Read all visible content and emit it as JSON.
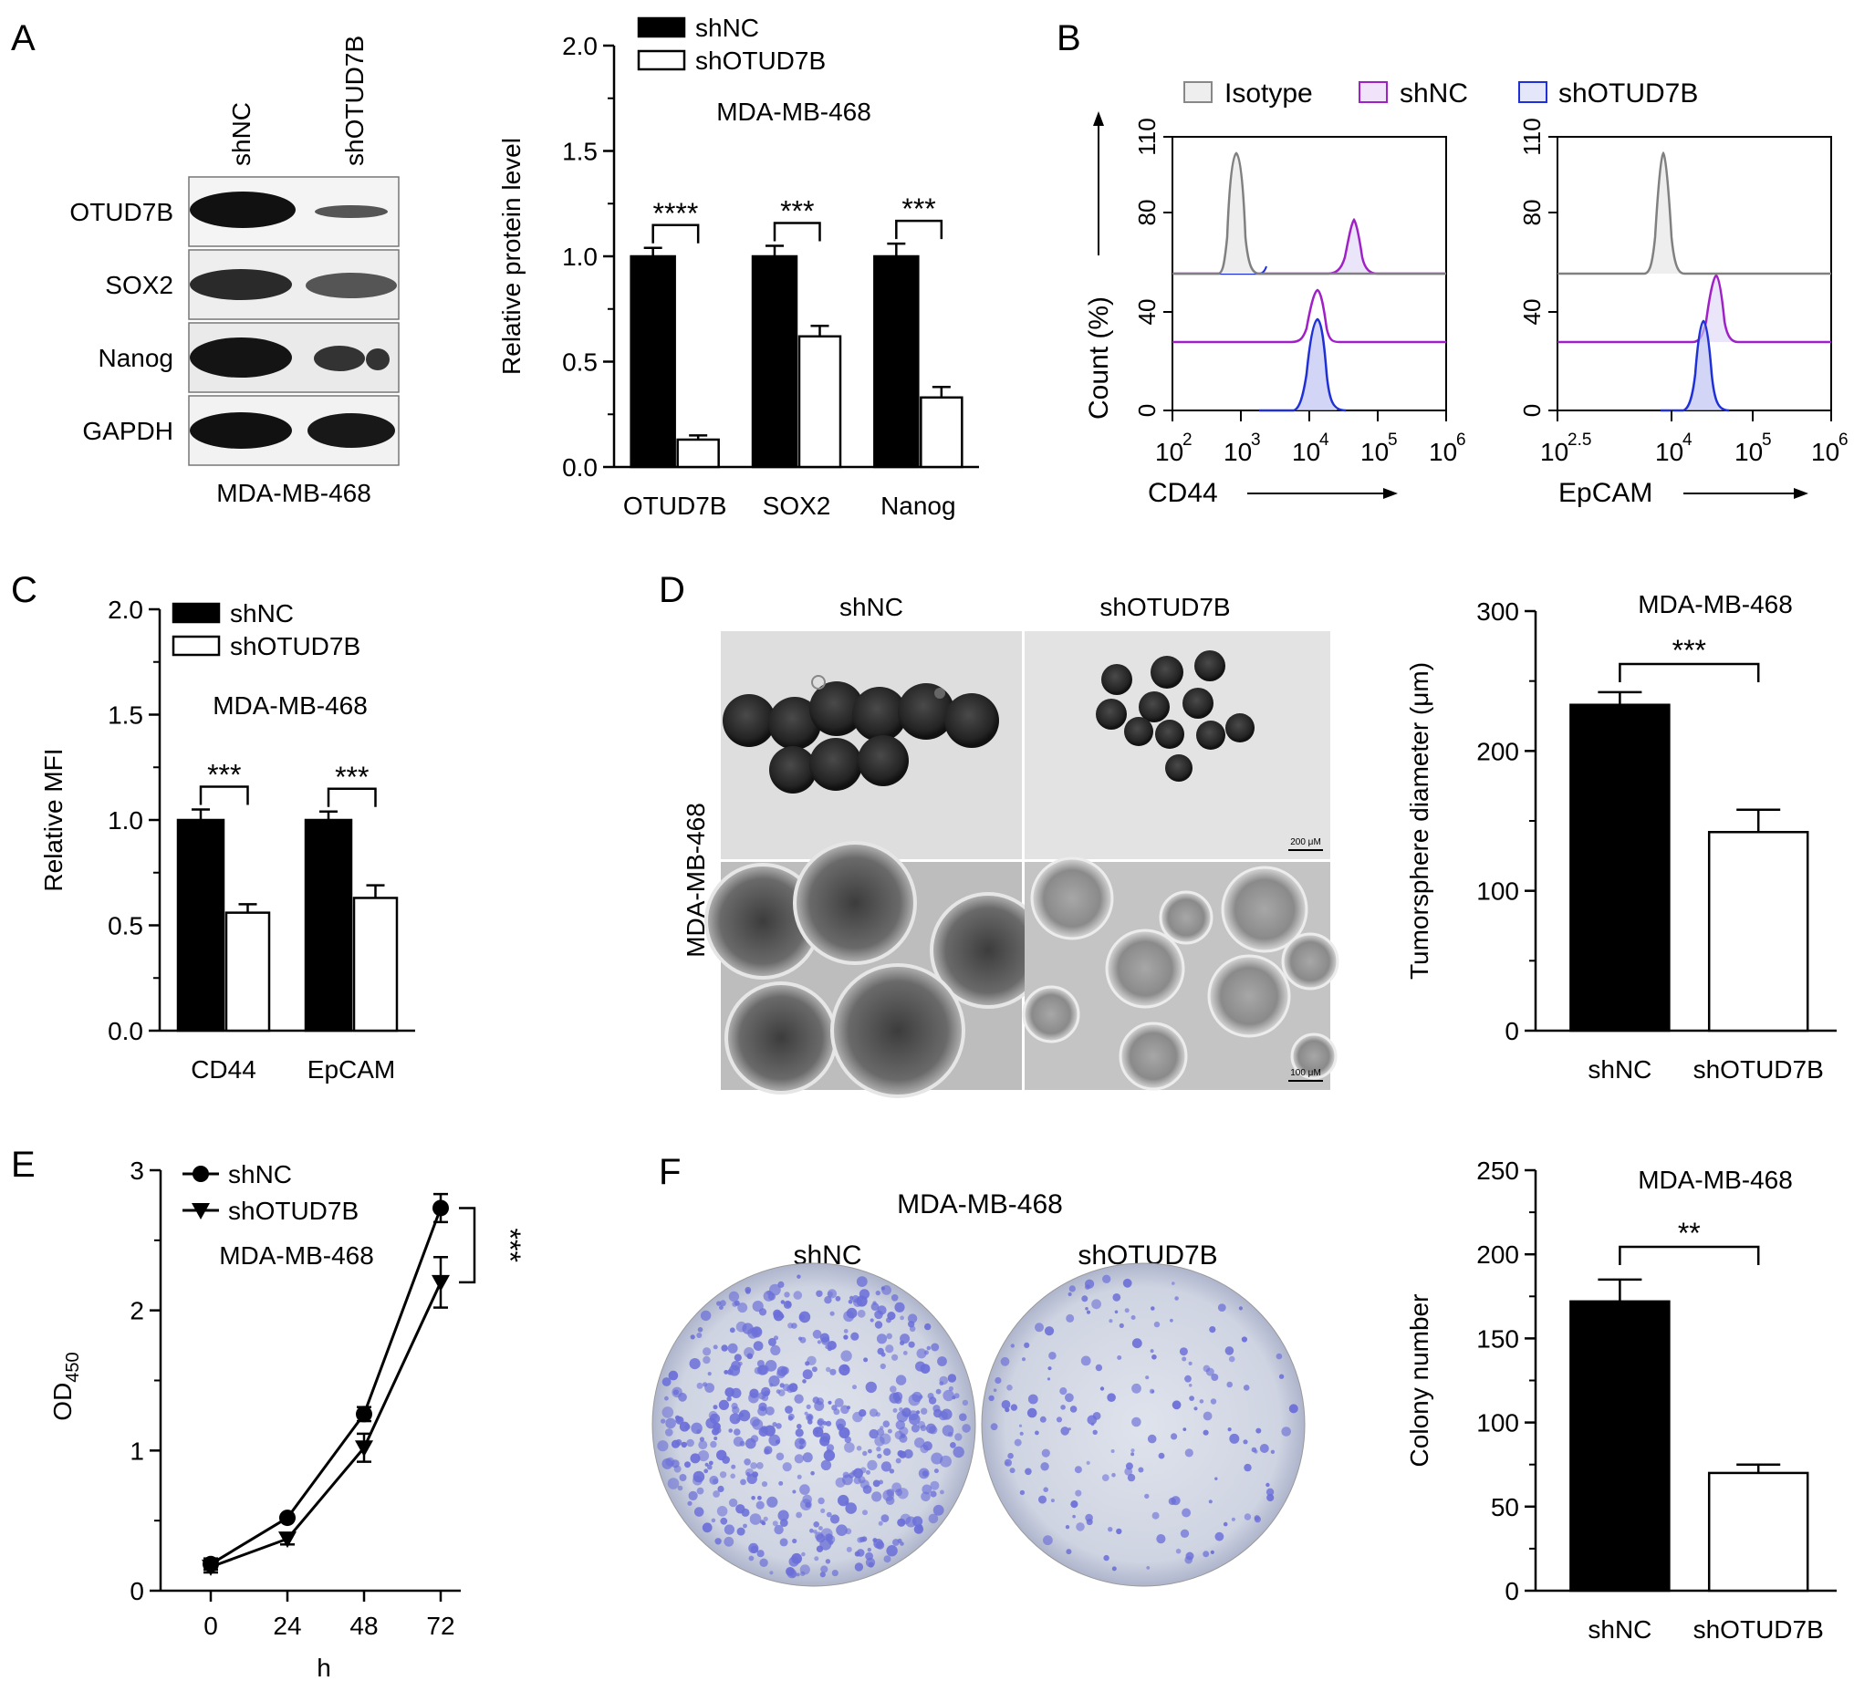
{
  "panels": {
    "A": {
      "letter": "A",
      "blot": {
        "lanes": [
          "shNC",
          "shOTUD7B"
        ],
        "rows": [
          "OTUD7B",
          "SOX2",
          "Nanog",
          "GAPDH"
        ],
        "cell_line": "MDA-MB-468"
      }
    },
    "B": {
      "letter": "B",
      "legend": [
        "Isotype",
        "shNC",
        "shOTUD7B"
      ],
      "ylabel": "Count (%)",
      "yticks": [
        "0",
        "40",
        "80",
        "110"
      ],
      "left": {
        "xlabel": "CD44",
        "xticks": [
          {
            "b": "10",
            "e": "2"
          },
          {
            "b": "10",
            "e": "3"
          },
          {
            "b": "10",
            "e": "4"
          },
          {
            "b": "10",
            "e": "5"
          },
          {
            "b": "10",
            "e": "6"
          }
        ]
      },
      "right": {
        "xlabel": "EpCAM",
        "xticks": [
          {
            "b": "10",
            "e": "2.5"
          },
          {
            "b": "10",
            "e": "4"
          },
          {
            "b": "10",
            "e": "5"
          },
          {
            "b": "10",
            "e": "6"
          }
        ]
      }
    },
    "C": {
      "letter": "C"
    },
    "D": {
      "letter": "D",
      "image_labels": [
        "shNC",
        "shOTUD7B"
      ],
      "row_label": "MDA-MB-468",
      "scale_top": "200 μM",
      "scale_bottom": "100 μM"
    },
    "E": {
      "letter": "E"
    },
    "F": {
      "letter": "F",
      "title": "MDA-MB-468",
      "image_labels": [
        "shNC",
        "shOTUD7B"
      ]
    }
  },
  "colors": {
    "shNC_bar": "#000000",
    "shOTUD7B_bar": "#ffffff",
    "isotype": "#808080",
    "shNC_flow": "#a020c8",
    "shOTUD7B_flow": "#2030d8"
  },
  "chart_data": [
    {
      "id": "A-bar",
      "type": "bar",
      "title": "MDA-MB-468",
      "ylabel": "Relative protein level",
      "ylim": [
        0,
        2.0
      ],
      "yticks": [
        "0.0",
        "0.5",
        "1.0",
        "1.5",
        "2.0"
      ],
      "categories": [
        "OTUD7B",
        "SOX2",
        "Nanog"
      ],
      "series": [
        {
          "name": "shNC",
          "values": [
            1.0,
            1.0,
            1.0
          ],
          "errors": [
            0.04,
            0.05,
            0.06
          ]
        },
        {
          "name": "shOTUD7B",
          "values": [
            0.13,
            0.62,
            0.33
          ],
          "errors": [
            0.02,
            0.05,
            0.05
          ]
        }
      ],
      "significance": [
        "****",
        "***",
        "***"
      ],
      "legend": "top-left"
    },
    {
      "id": "B-flow",
      "type": "line",
      "note_series": [
        "Isotype",
        "shNC",
        "shOTUD7B"
      ]
    },
    {
      "id": "C-bar",
      "type": "bar",
      "title": "MDA-MB-468",
      "ylabel": "Relative MFI",
      "ylim": [
        0,
        2.0
      ],
      "yticks": [
        "0.0",
        "0.5",
        "1.0",
        "1.5",
        "2.0"
      ],
      "categories": [
        "CD44",
        "EpCAM"
      ],
      "series": [
        {
          "name": "shNC",
          "values": [
            1.0,
            1.0
          ],
          "errors": [
            0.05,
            0.04
          ]
        },
        {
          "name": "shOTUD7B",
          "values": [
            0.56,
            0.63
          ],
          "errors": [
            0.04,
            0.06
          ]
        }
      ],
      "significance": [
        "***",
        "***"
      ],
      "legend": "top-left"
    },
    {
      "id": "D-bar",
      "type": "bar",
      "title": "MDA-MB-468",
      "ylabel": "Tumorsphere diameter (μm)",
      "ylim": [
        0,
        300
      ],
      "yticks": [
        "0",
        "100",
        "200",
        "300"
      ],
      "categories": [
        "shNC",
        "shOTUD7B"
      ],
      "values": [
        233,
        142
      ],
      "errors": [
        9,
        16
      ],
      "significance": "***"
    },
    {
      "id": "E-line",
      "type": "line",
      "title": "MDA-MB-468",
      "xlabel": "h",
      "ylabel": "OD450",
      "ylim": [
        0,
        3
      ],
      "x": [
        0,
        24,
        48,
        72
      ],
      "yticks": [
        "0",
        "1",
        "2",
        "3"
      ],
      "series": [
        {
          "name": "shNC",
          "values": [
            0.19,
            0.52,
            1.26,
            2.73
          ],
          "errors": [
            0.04,
            0.02,
            0.05,
            0.1
          ]
        },
        {
          "name": "shOTUD7B",
          "values": [
            0.17,
            0.37,
            1.02,
            2.2
          ],
          "errors": [
            0.04,
            0.04,
            0.1,
            0.18
          ]
        }
      ],
      "significance": "***",
      "legend": "top-left"
    },
    {
      "id": "F-bar",
      "type": "bar",
      "title": "MDA-MB-468",
      "ylabel": "Colony number",
      "ylim": [
        0,
        250
      ],
      "yticks": [
        "0",
        "50",
        "100",
        "150",
        "200",
        "250"
      ],
      "categories": [
        "shNC",
        "shOTUD7B"
      ],
      "values": [
        172,
        70
      ],
      "errors": [
        13,
        5
      ],
      "significance": "**"
    }
  ]
}
